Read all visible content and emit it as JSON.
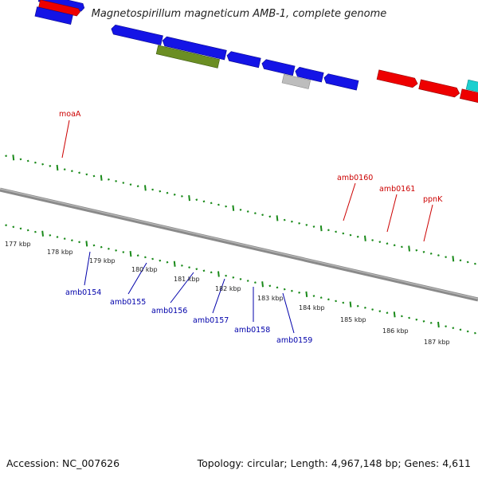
{
  "title": "Magnetospirillum magneticum AMB-1, complete genome",
  "footer": {
    "accession": "Accession: NC_007626",
    "summary": "Topology: circular; Length: 4,967,148 bp; Genes: 4,611"
  },
  "colors": {
    "blue": "#1414e6",
    "red": "#ee0000",
    "olive": "#6b8e23",
    "gray": "#bdbdbd",
    "cyan": "#1ccfcf",
    "tick": "#1a8a1a",
    "backbone": "#888888",
    "label_red": "#cc0000",
    "label_blue": "#0000aa"
  },
  "kbp_labels": [
    "177 kbp",
    "178 kbp",
    "179 kbp",
    "180 kbp",
    "181 kbp",
    "182 kbp",
    "183 kbp",
    "184 kbp",
    "185 kbp",
    "186 kbp",
    "187 kbp"
  ],
  "gene_labels_top": [
    "moaA",
    "amb0160",
    "amb0161",
    "ppnK"
  ],
  "gene_labels_bottom": [
    "amb0154",
    "amb0155",
    "amb0156",
    "amb0157",
    "amb0158",
    "amb0159"
  ]
}
